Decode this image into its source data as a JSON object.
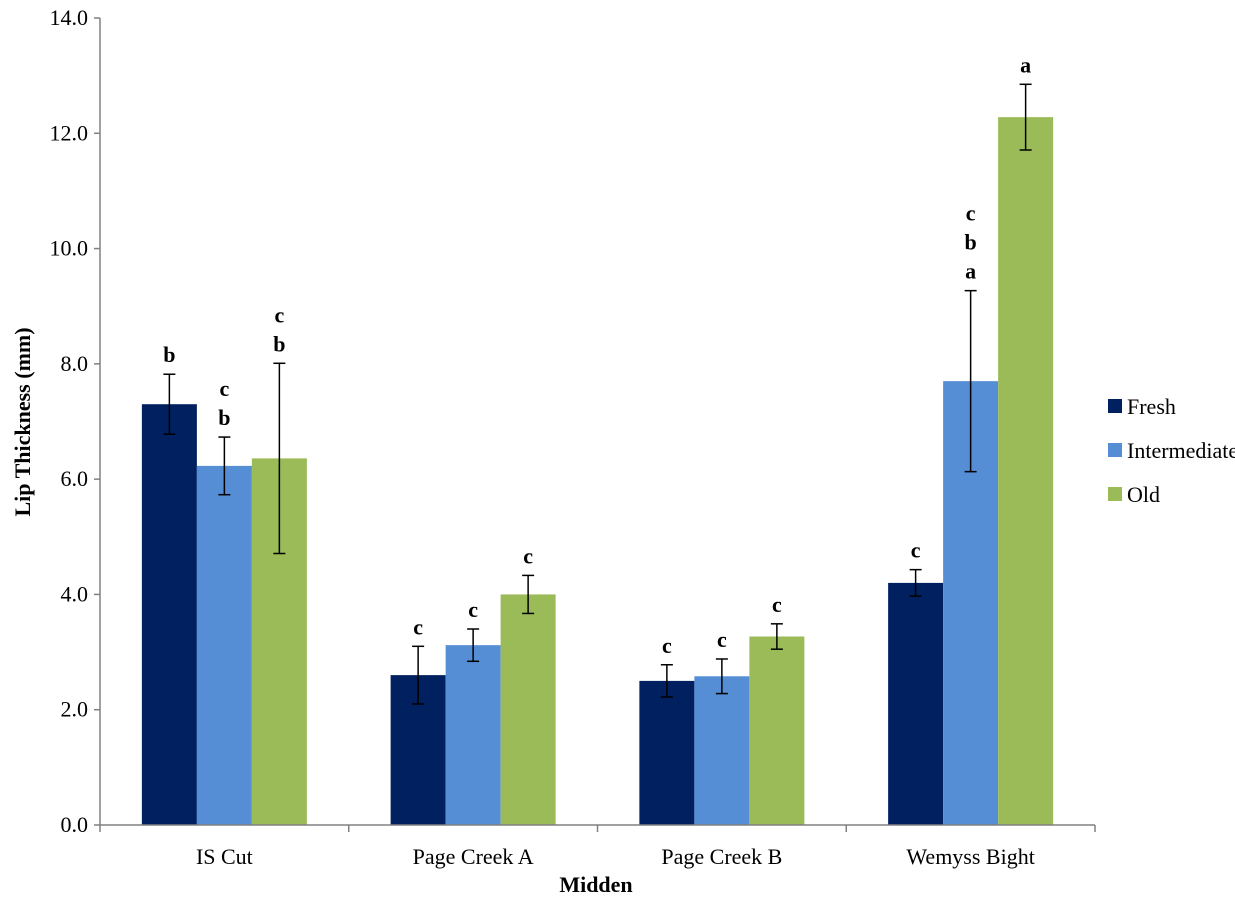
{
  "chart_data": {
    "type": "bar",
    "title": "",
    "xlabel": "Midden",
    "ylabel": "Lip Thickness (mm)",
    "ylim": [
      0,
      14
    ],
    "yticks": [
      "0.0",
      "2.0",
      "4.0",
      "6.0",
      "8.0",
      "10.0",
      "12.0",
      "14.0"
    ],
    "grid": false,
    "legend_position": "right",
    "categories": [
      "IS Cut",
      "Page Creek A",
      "Page Creek B",
      "Wemyss Bight"
    ],
    "series": [
      {
        "name": "Fresh",
        "color": "#002060",
        "values": [
          7.3,
          2.6,
          2.5,
          4.2
        ],
        "error": [
          0.52,
          0.5,
          0.28,
          0.23
        ],
        "labels": [
          [
            "b"
          ],
          [
            "c"
          ],
          [
            "c"
          ],
          [
            "c"
          ]
        ]
      },
      {
        "name": "Intermediate",
        "color": "#558ED5",
        "values": [
          6.23,
          3.12,
          2.58,
          7.7
        ],
        "error": [
          0.5,
          0.28,
          0.3,
          1.57
        ],
        "labels": [
          [
            "c",
            "b"
          ],
          [
            "c"
          ],
          [
            "c"
          ],
          [
            "c",
            "b",
            "a"
          ]
        ]
      },
      {
        "name": "Old",
        "color": "#9BBB59",
        "values": [
          6.36,
          4.0,
          3.27,
          12.28
        ],
        "error": [
          1.65,
          0.33,
          0.22,
          0.57
        ],
        "labels": [
          [
            "c",
            "b"
          ],
          [
            "c"
          ],
          [
            "c"
          ],
          [
            "a"
          ]
        ]
      }
    ]
  }
}
